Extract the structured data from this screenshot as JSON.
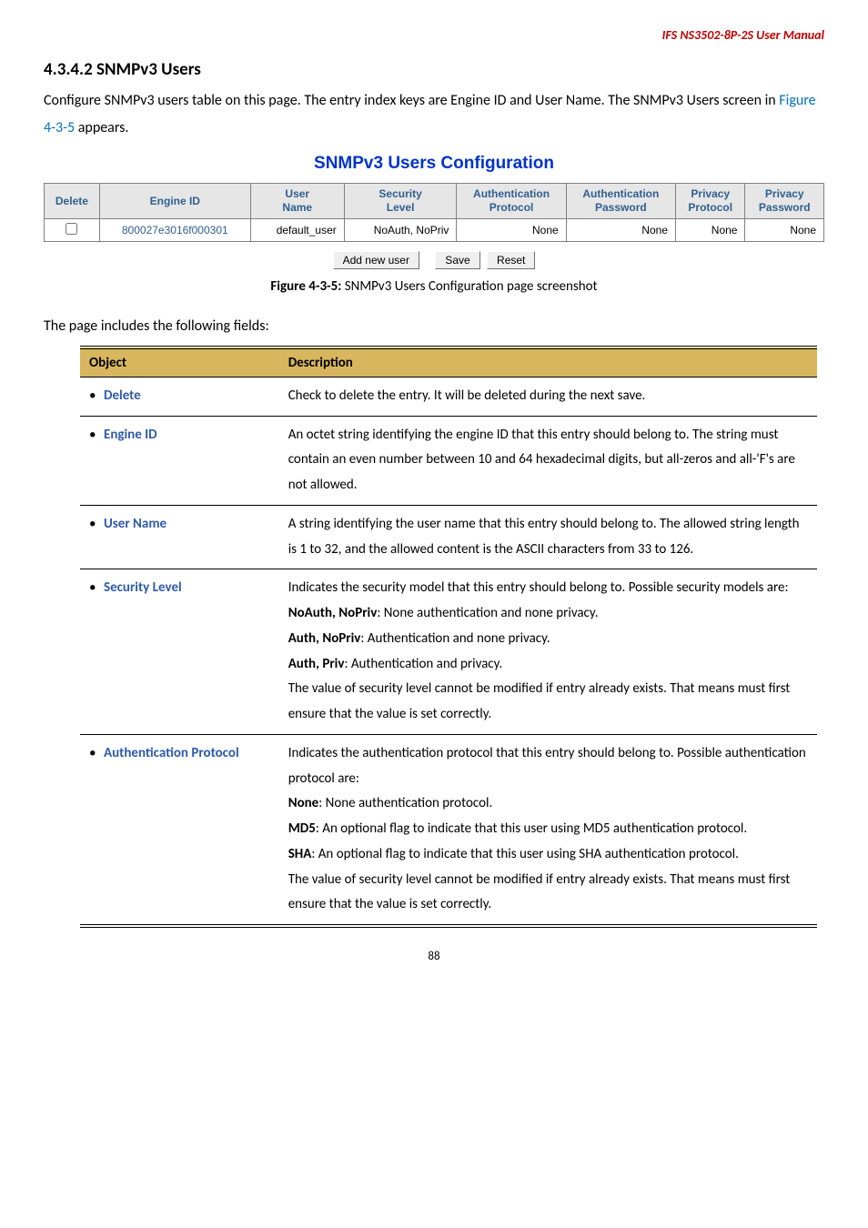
{
  "header": {
    "running": "IFS NS3502-8P-2S  User Manual"
  },
  "section": {
    "number": "4.3.4.2",
    "title": "SNMPv3 Users",
    "para1_a": "Configure SNMPv3 users table on this page. The entry index keys are Engine ID and User Name. The SNMPv3 Users screen in ",
    "para1_link": "Figure 4-3-5",
    "para1_b": " appears."
  },
  "snmp_title": "SNMPv3 Users Configuration",
  "snmp_table": {
    "columns": [
      "Delete",
      "Engine ID",
      "User\nName",
      "Security\nLevel",
      "Authentication\nProtocol",
      "Authentication\nPassword",
      "Privacy\nProtocol",
      "Privacy\nPassword"
    ],
    "row": {
      "engine_id": "800027e3016f000301",
      "user_name": "default_user",
      "security_level": "NoAuth, NoPriv",
      "auth_protocol": "None",
      "auth_password": "None",
      "priv_protocol": "None",
      "priv_password": "None"
    }
  },
  "buttons": {
    "add": "Add new user",
    "save": "Save",
    "reset": "Reset"
  },
  "figure_caption": {
    "bold": "Figure 4-3-5: ",
    "rest": "SNMPv3 Users Configuration page screenshot"
  },
  "lead_in": "The page includes the following fields:",
  "desc_table": {
    "headers": {
      "object": "Object",
      "description": "Description"
    },
    "rows": [
      {
        "object": "Delete",
        "lines": [
          {
            "text": "Check to delete the entry. It will be deleted during the next save."
          }
        ]
      },
      {
        "object": "Engine ID",
        "lines": [
          {
            "text": "An octet string identifying the engine ID that this entry should belong to. The string must contain an even number between 10 and 64 hexadecimal digits, but all-zeros and all-'F's are not allowed."
          }
        ]
      },
      {
        "object": "User Name",
        "lines": [
          {
            "text": "A string identifying the user name that this entry should belong to. The allowed string length is 1 to 32, and the allowed content is the ASCII characters from 33 to 126."
          }
        ]
      },
      {
        "object": "Security Level",
        "lines": [
          {
            "text": "Indicates the security model that this entry should belong to. Possible security models are:"
          },
          {
            "term": "NoAuth, NoPriv",
            "text": ": None authentication and none privacy."
          },
          {
            "term": "Auth, NoPriv",
            "text": ": Authentication and none privacy."
          },
          {
            "term": "Auth, Priv",
            "text": ": Authentication and privacy."
          },
          {
            "text": "The value of security level cannot be modified if entry already exists. That means must first ensure that the value is set correctly."
          }
        ]
      },
      {
        "object": "Authentication Protocol",
        "lines": [
          {
            "text": "Indicates the authentication protocol that this entry should belong to. Possible authentication protocol are:"
          },
          {
            "term": "None",
            "text": ": None authentication protocol."
          },
          {
            "term": "MD5",
            "text": ": An optional flag to indicate that this user using MD5 authentication protocol."
          },
          {
            "term": "SHA",
            "text": ": An optional flag to indicate that this user using SHA authentication protocol."
          },
          {
            "text": "The value of security level cannot be modified if entry already exists. That means must first ensure that the value is set correctly."
          }
        ]
      }
    ]
  },
  "page_number": "88"
}
